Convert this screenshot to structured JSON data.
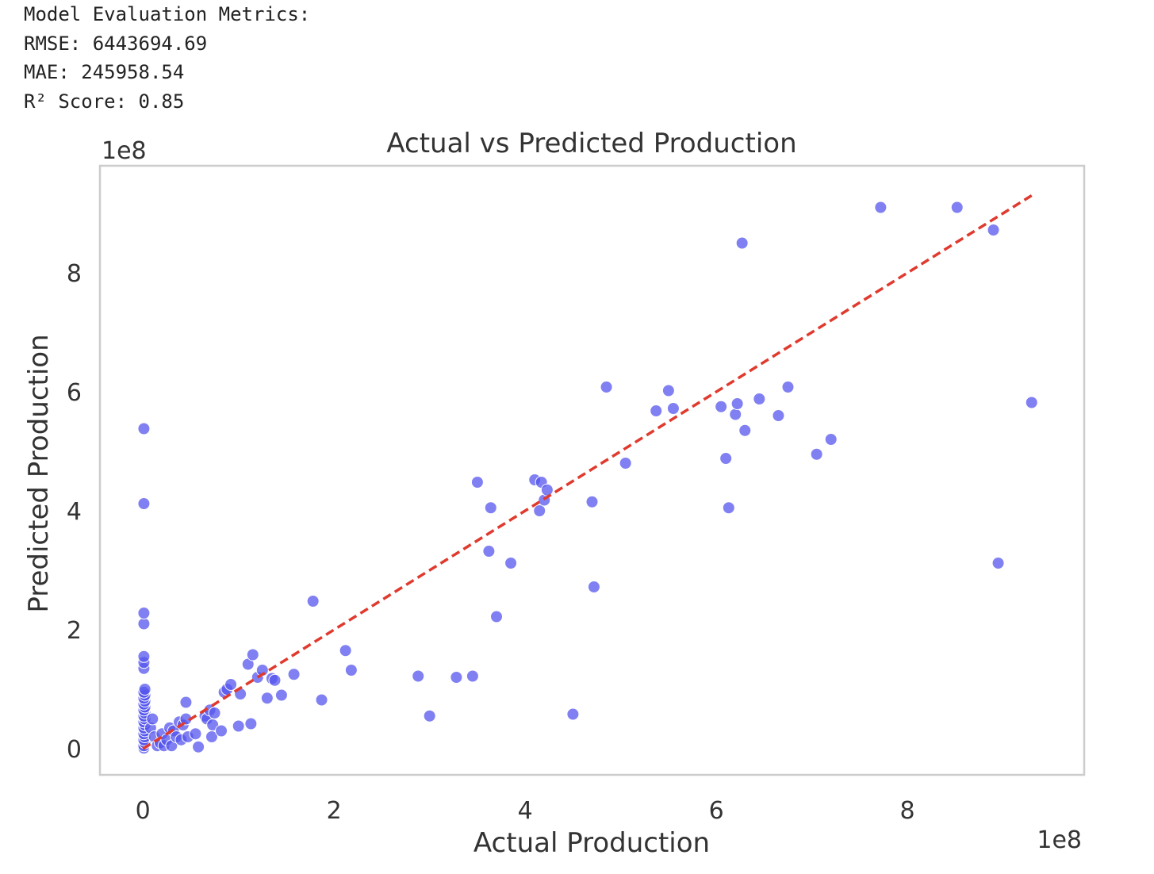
{
  "metrics": {
    "header": "Model Evaluation Metrics:",
    "rmse": "RMSE: 6443694.69",
    "mae": "MAE: 245958.54",
    "r2": "R² Score: 0.85"
  },
  "chart_data": {
    "type": "scatter",
    "title": "Actual vs Predicted Production",
    "xlabel": "Actual Production",
    "ylabel": "Predicted Production",
    "x_offset_text": "1e8",
    "y_offset_text": "1e8",
    "x_ticks": [
      0,
      2,
      4,
      6,
      8
    ],
    "y_ticks": [
      0,
      2,
      4,
      6,
      8
    ],
    "xlim": [
      -0.45,
      9.85
    ],
    "ylim": [
      -0.44,
      9.8
    ],
    "grid": false,
    "point_color": "#5555ee",
    "line_color": "#e03a2e",
    "reference_line": {
      "from": [
        0,
        0
      ],
      "to": [
        9.3,
        9.3
      ],
      "style": "dashed"
    },
    "points": [
      [
        0.01,
        0.01
      ],
      [
        0.01,
        0.05
      ],
      [
        0.02,
        0.1
      ],
      [
        0.01,
        0.15
      ],
      [
        0.02,
        0.2
      ],
      [
        0.01,
        0.25
      ],
      [
        0.02,
        0.3
      ],
      [
        0.01,
        0.35
      ],
      [
        0.02,
        0.4
      ],
      [
        0.01,
        0.45
      ],
      [
        0.02,
        0.5
      ],
      [
        0.01,
        0.55
      ],
      [
        0.02,
        0.6
      ],
      [
        0.01,
        0.65
      ],
      [
        0.02,
        0.7
      ],
      [
        0.01,
        0.75
      ],
      [
        0.02,
        0.8
      ],
      [
        0.01,
        0.85
      ],
      [
        0.02,
        0.9
      ],
      [
        0.01,
        0.95
      ],
      [
        0.02,
        1.0
      ],
      [
        0.01,
        1.35
      ],
      [
        0.01,
        1.45
      ],
      [
        0.01,
        1.55
      ],
      [
        0.01,
        2.1
      ],
      [
        0.01,
        2.28
      ],
      [
        0.01,
        4.12
      ],
      [
        0.01,
        5.38
      ],
      [
        0.08,
        0.35
      ],
      [
        0.1,
        0.5
      ],
      [
        0.12,
        0.2
      ],
      [
        0.15,
        0.05
      ],
      [
        0.18,
        0.1
      ],
      [
        0.2,
        0.25
      ],
      [
        0.22,
        0.05
      ],
      [
        0.25,
        0.15
      ],
      [
        0.28,
        0.35
      ],
      [
        0.3,
        0.05
      ],
      [
        0.32,
        0.3
      ],
      [
        0.35,
        0.2
      ],
      [
        0.38,
        0.45
      ],
      [
        0.4,
        0.15
      ],
      [
        0.42,
        0.4
      ],
      [
        0.45,
        0.5
      ],
      [
        0.45,
        0.78
      ],
      [
        0.47,
        0.2
      ],
      [
        0.55,
        0.25
      ],
      [
        0.58,
        0.03
      ],
      [
        0.65,
        0.55
      ],
      [
        0.67,
        0.5
      ],
      [
        0.7,
        0.65
      ],
      [
        0.72,
        0.2
      ],
      [
        0.73,
        0.4
      ],
      [
        0.75,
        0.6
      ],
      [
        0.82,
        0.3
      ],
      [
        0.85,
        0.95
      ],
      [
        0.88,
        1.0
      ],
      [
        0.92,
        1.08
      ],
      [
        1.0,
        0.38
      ],
      [
        1.02,
        0.92
      ],
      [
        1.1,
        1.42
      ],
      [
        1.13,
        0.42
      ],
      [
        1.15,
        1.58
      ],
      [
        1.2,
        1.2
      ],
      [
        1.25,
        1.32
      ],
      [
        1.3,
        0.85
      ],
      [
        1.35,
        1.18
      ],
      [
        1.38,
        1.15
      ],
      [
        1.45,
        0.9
      ],
      [
        1.58,
        1.25
      ],
      [
        1.78,
        2.48
      ],
      [
        1.87,
        0.82
      ],
      [
        2.12,
        1.65
      ],
      [
        2.18,
        1.32
      ],
      [
        2.88,
        1.22
      ],
      [
        3.0,
        0.55
      ],
      [
        3.28,
        1.2
      ],
      [
        3.45,
        1.22
      ],
      [
        3.5,
        4.48
      ],
      [
        3.62,
        3.32
      ],
      [
        3.64,
        4.05
      ],
      [
        3.7,
        2.22
      ],
      [
        3.85,
        3.12
      ],
      [
        4.1,
        4.52
      ],
      [
        4.15,
        4.0
      ],
      [
        4.17,
        4.48
      ],
      [
        4.2,
        4.18
      ],
      [
        4.23,
        4.35
      ],
      [
        4.5,
        0.58
      ],
      [
        4.7,
        4.15
      ],
      [
        4.72,
        2.72
      ],
      [
        4.85,
        6.08
      ],
      [
        5.05,
        4.8
      ],
      [
        5.37,
        5.68
      ],
      [
        5.5,
        6.02
      ],
      [
        5.55,
        5.72
      ],
      [
        6.05,
        5.75
      ],
      [
        6.1,
        4.88
      ],
      [
        6.13,
        4.05
      ],
      [
        6.2,
        5.62
      ],
      [
        6.22,
        5.8
      ],
      [
        6.27,
        8.5
      ],
      [
        6.3,
        5.35
      ],
      [
        6.45,
        5.88
      ],
      [
        6.65,
        5.6
      ],
      [
        6.75,
        6.08
      ],
      [
        7.05,
        4.95
      ],
      [
        7.2,
        5.2
      ],
      [
        7.72,
        9.1
      ],
      [
        8.52,
        9.1
      ],
      [
        8.9,
        8.72
      ],
      [
        8.95,
        3.12
      ],
      [
        9.3,
        5.82
      ]
    ]
  }
}
